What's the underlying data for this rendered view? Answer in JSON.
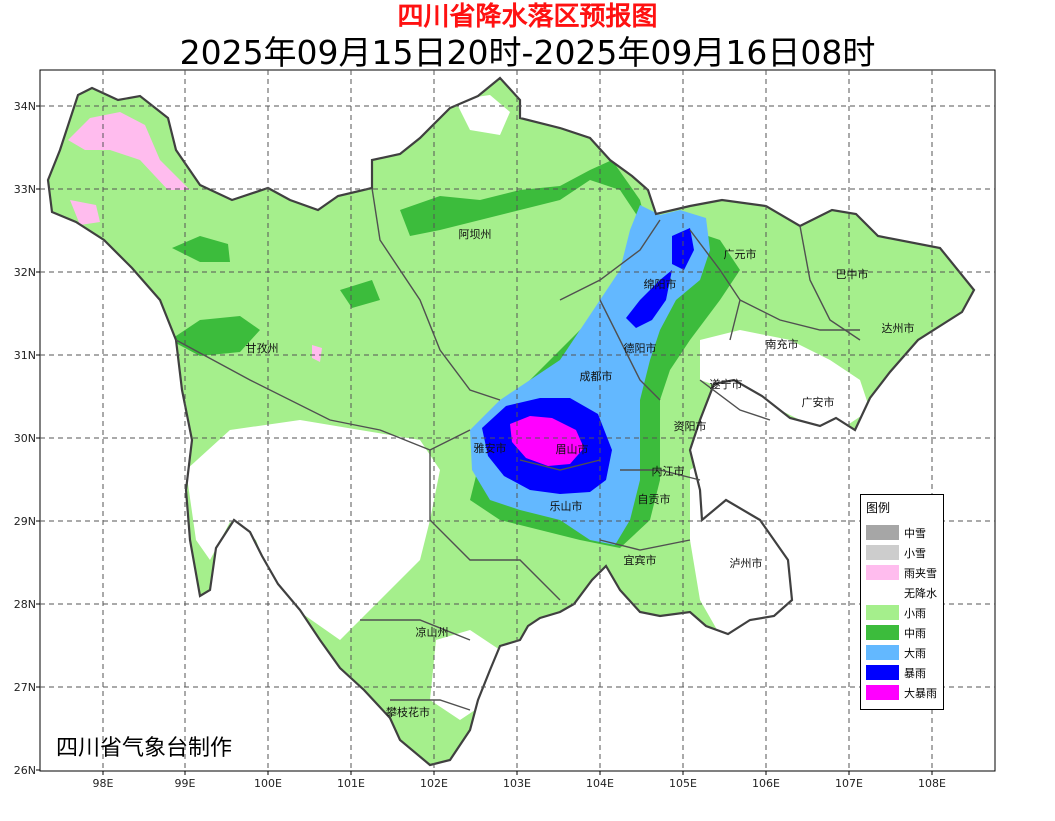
{
  "title": "四川省降水落区预报图",
  "subtitle": "2025年09月15日20时-2025年09月16日08时",
  "credit": "四川省气象台制作",
  "axes": {
    "x_ticks": [
      "98E",
      "99E",
      "100E",
      "101E",
      "102E",
      "103E",
      "104E",
      "105E",
      "106E",
      "107E",
      "108E"
    ],
    "y_ticks": [
      "34N",
      "33N",
      "32N",
      "31N",
      "30N",
      "29N",
      "28N",
      "27N",
      "26N"
    ]
  },
  "colors": {
    "light_rain": "#a5ef8c",
    "moderate_rain": "#3cbc3c",
    "heavy_rain": "#63b8ff",
    "rainstorm": "#0000ff",
    "heavy_rainstorm": "#ff00ff",
    "sleet": "#ffbcee",
    "border": "#404040"
  },
  "cities": [
    {
      "name": "阿坝州"
    },
    {
      "name": "甘孜州"
    },
    {
      "name": "绵阳市"
    },
    {
      "name": "广元市"
    },
    {
      "name": "巴中市"
    },
    {
      "name": "达州市"
    },
    {
      "name": "南充市"
    },
    {
      "name": "德阳市"
    },
    {
      "name": "成都市"
    },
    {
      "name": "遂宁市"
    },
    {
      "name": "广安市"
    },
    {
      "name": "资阳市"
    },
    {
      "name": "雅安市"
    },
    {
      "name": "眉山市"
    },
    {
      "name": "内江市"
    },
    {
      "name": "乐山市"
    },
    {
      "name": "自贡市"
    },
    {
      "name": "宜宾市"
    },
    {
      "name": "泸州市"
    },
    {
      "name": "凉山州"
    },
    {
      "name": "攀枝花市"
    }
  ],
  "legend": {
    "title": "图例",
    "items": [
      {
        "label": "中雪",
        "color": "#a6a6a6"
      },
      {
        "label": "小雪",
        "color": "#cdcdcd"
      },
      {
        "label": "雨夹雪",
        "color": "#ffbcee"
      },
      {
        "label": "无降水",
        "color": "#ffffff"
      },
      {
        "label": "小雨",
        "color": "#a5ef8c"
      },
      {
        "label": "中雨",
        "color": "#3cbc3c"
      },
      {
        "label": "大雨",
        "color": "#63b8ff"
      },
      {
        "label": "暴雨",
        "color": "#0000ff"
      },
      {
        "label": "大暴雨",
        "color": "#ff00ff"
      }
    ]
  }
}
